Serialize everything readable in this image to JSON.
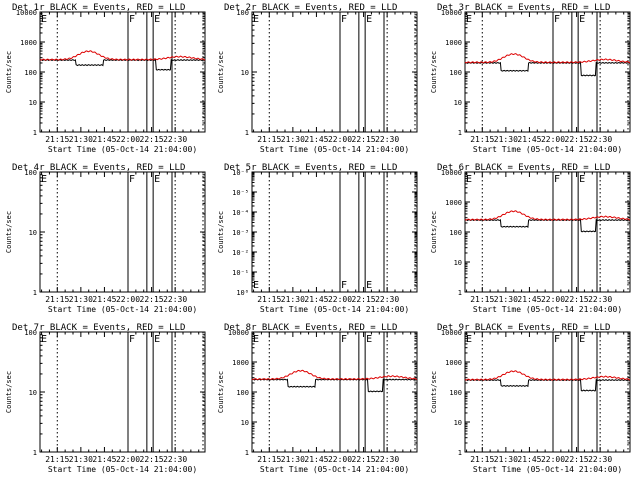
{
  "colors": {
    "events": "#000000",
    "lld": "#dd0000",
    "axis": "#000000"
  },
  "shared": {
    "xlabel": "Start Time (05-Oct-14 21:04:00)",
    "ylabel": "Counts/sec",
    "x_ticks": [
      "21:15",
      "21:30",
      "21:45",
      "22:00",
      "22:15",
      "22:30"
    ],
    "x_tick_minutes": [
      15,
      30,
      45,
      60,
      75,
      90
    ],
    "x_range_minutes": [
      4,
      109
    ],
    "dotted_lines_minutes": [
      15,
      90
    ],
    "flag_lines_minutes": [
      60,
      72,
      76,
      88
    ],
    "flag_labels": {
      "F": 60,
      "E": 76
    }
  },
  "chart_data": [
    {
      "id": "det1r",
      "type": "line",
      "title": "Det 1r BLACK = Events, RED = LLD",
      "ylog": true,
      "ylim": [
        1,
        10000
      ],
      "has_data": true,
      "y_ticks": [
        "1",
        "10",
        "100",
        "1000",
        "10000"
      ],
      "level": 260,
      "dip": 170
    },
    {
      "id": "det2r",
      "type": "line",
      "title": "Det 2r BLACK = Events, RED = LLD",
      "ylog": true,
      "ylim": [
        1,
        100
      ],
      "has_data": false,
      "y_ticks": [
        "1",
        "10",
        "100"
      ]
    },
    {
      "id": "det3r",
      "type": "line",
      "title": "Det 3r BLACK = Events, RED = LLD",
      "ylog": true,
      "ylim": [
        1,
        10000
      ],
      "has_data": true,
      "y_ticks": [
        "1",
        "10",
        "100",
        "1000",
        "10000"
      ],
      "level": 210,
      "dip": 110
    },
    {
      "id": "det4r",
      "type": "line",
      "title": "Det 4r BLACK = Events, RED = LLD",
      "ylog": true,
      "ylim": [
        1,
        100
      ],
      "has_data": false,
      "y_ticks": [
        "1",
        "10",
        "100"
      ]
    },
    {
      "id": "det5r",
      "type": "line",
      "title": "Det 5r BLACK = Events, RED = LLD",
      "ylog": true,
      "ylim": [
        1,
        1e-06
      ],
      "has_data": false,
      "y_ticks": [
        "10⁰",
        "10⁻¹",
        "10⁻²",
        "10⁻³",
        "10⁻⁴",
        "10⁻⁵",
        "10⁻⁶"
      ]
    },
    {
      "id": "det6r",
      "type": "line",
      "title": "Det 6r BLACK = Events, RED = LLD",
      "ylog": true,
      "ylim": [
        1,
        10000
      ],
      "has_data": true,
      "y_ticks": [
        "1",
        "10",
        "100",
        "1000",
        "10000"
      ],
      "level": 260,
      "dip": 150
    },
    {
      "id": "det7r",
      "type": "line",
      "title": "Det 7r BLACK = Events, RED = LLD",
      "ylog": true,
      "ylim": [
        1,
        100
      ],
      "has_data": false,
      "y_ticks": [
        "1",
        "10",
        "100"
      ]
    },
    {
      "id": "det8r",
      "type": "line",
      "title": "Det 8r BLACK = Events, RED = LLD",
      "ylog": true,
      "ylim": [
        1,
        10000
      ],
      "has_data": true,
      "y_ticks": [
        "1",
        "10",
        "100",
        "1000",
        "10000"
      ],
      "level": 270,
      "dip": 150
    },
    {
      "id": "det9r",
      "type": "line",
      "title": "Det 9r BLACK = Events, RED = LLD",
      "ylog": true,
      "ylim": [
        1,
        10000
      ],
      "has_data": true,
      "y_ticks": [
        "1",
        "10",
        "100",
        "1000",
        "10000"
      ],
      "level": 260,
      "dip": 160
    }
  ]
}
